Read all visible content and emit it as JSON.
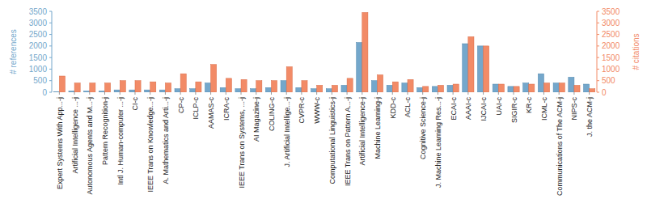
{
  "chart_data": {
    "type": "bar",
    "categories": [
      "Expert Systems With App...-j",
      "Artificial Intelligence ...-j",
      "Autonomous Agents and M...-j",
      "Pattern Recognition-j",
      "Intl J. Human-computer ...-j",
      "CI-c",
      "IEEE Trans on Knowledge...-j",
      "A. Mathematics and Arti...-j",
      "CP-c",
      "ICLP-c",
      "AAMAS-c",
      "ICRA-c",
      "IEEE Trans on Systems, ...-j",
      "AI Magazine-j",
      "COLING-c",
      "J. Artificial Intellige...-j",
      "CVPR-c",
      "WWW-c",
      "Computational Linguistics-j",
      "IEEE Trans on Pattern A...-j",
      "Artificial Intelligence-j",
      "Machine Learning-j",
      "KDD-c",
      "ACL-c",
      "Cognitive Science-j",
      "J. Machine Learning Res...-j",
      "ECAI-c",
      "AAAI-c",
      "IJCAI-c",
      "UAI-c",
      "SIGIR-c",
      "KR-c",
      "ICML-c",
      "Communications of The ACM-j",
      "NIPS-c",
      "J. the ACM-j"
    ],
    "series": [
      {
        "name": "# references",
        "color": "#74a7cb",
        "values": [
          20,
          50,
          50,
          50,
          100,
          100,
          100,
          100,
          150,
          150,
          400,
          200,
          150,
          150,
          200,
          500,
          200,
          150,
          150,
          300,
          2150,
          500,
          300,
          400,
          200,
          250,
          300,
          2100,
          2000,
          350,
          250,
          400,
          800,
          400,
          650,
          350
        ]
      },
      {
        "name": "# citations",
        "color": "#f28b67",
        "axis": "y2",
        "values": [
          700,
          400,
          400,
          400,
          500,
          500,
          450,
          400,
          800,
          450,
          1200,
          600,
          550,
          500,
          500,
          1100,
          500,
          300,
          300,
          600,
          3450,
          750,
          450,
          550,
          250,
          300,
          350,
          2400,
          2000,
          350,
          250,
          350,
          400,
          400,
          300,
          150
        ]
      }
    ],
    "ylim": [
      0,
      3500
    ],
    "yticks": [
      0,
      500,
      1000,
      1500,
      2000,
      2500,
      3000,
      3500
    ],
    "y2lim": [
      0,
      3500
    ],
    "y2ticks": [
      0,
      500,
      1000,
      1500,
      2000,
      2500,
      3000,
      3500
    ],
    "grid": false
  }
}
